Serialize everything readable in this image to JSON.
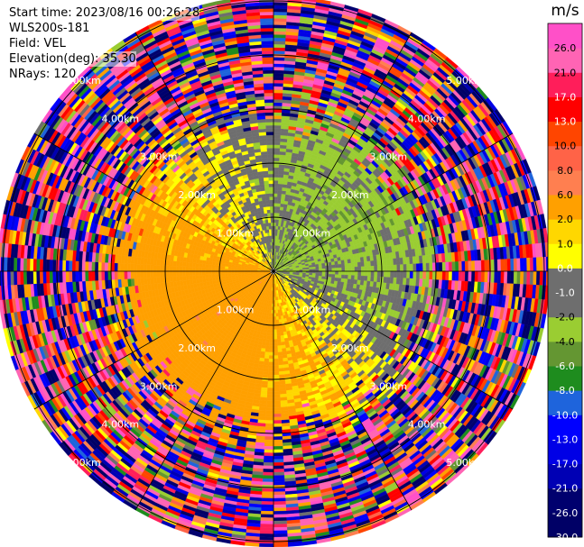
{
  "header": {
    "start_time": "Start time: 2023/08/16 00:26:28",
    "instrument": "WLS200s-181",
    "field": "Field: VEL",
    "elevation": "Elevation(deg): 35.30",
    "nrays": "NRays: 120"
  },
  "chart_data": {
    "type": "ppi",
    "field": "VEL",
    "units": "m/s",
    "nrays": 120,
    "elevation_deg": 35.3,
    "range_rings_km": [
      1.0,
      2.0,
      3.0,
      4.0,
      5.0
    ],
    "range_ring_labels": [
      "1.00km",
      "2.00km",
      "3.00km",
      "4.00km",
      "5.00km"
    ],
    "max_range_km": 5.1,
    "colorbar": {
      "unit_label": "m/s",
      "bounds": [
        -30,
        -26,
        -21,
        -17,
        -13,
        -10,
        -8,
        -6,
        -4,
        -2,
        -1,
        0,
        1,
        2,
        6,
        8,
        10,
        13,
        17,
        21,
        26,
        30
      ],
      "tick_labels": [
        "26.0",
        "21.0",
        "17.0",
        "13.0",
        "10.0",
        "8.0",
        "6.0",
        "2.0",
        "1.0",
        "0.0",
        "-1.0",
        "-2.0",
        "-4.0",
        "-6.0",
        "-8.0",
        "-10.0",
        "-13.0",
        "-17.0",
        "-21.0",
        "-26.0",
        "-30.0"
      ],
      "colors": [
        "#000066",
        "#00006e",
        "#0000b4",
        "#0000e6",
        "#0000ff",
        "#1e64dc",
        "#1e8c1e",
        "#649632",
        "#9acd32",
        "#6e6e6e",
        "#6e6e6e",
        "#ffff00",
        "#ffd700",
        "#ffa000",
        "#ff7f50",
        "#ff6347",
        "#ff4500",
        "#ff0000",
        "#ff1e5a",
        "#ff64b4",
        "#ff50c8"
      ]
    },
    "velocity_pattern": {
      "near_range_km": 2.4,
      "near_field_mean_ms": {
        "north": -1.5,
        "east": -2.0,
        "south": 3.0,
        "west": 4.0
      },
      "far_field": "noise"
    }
  }
}
